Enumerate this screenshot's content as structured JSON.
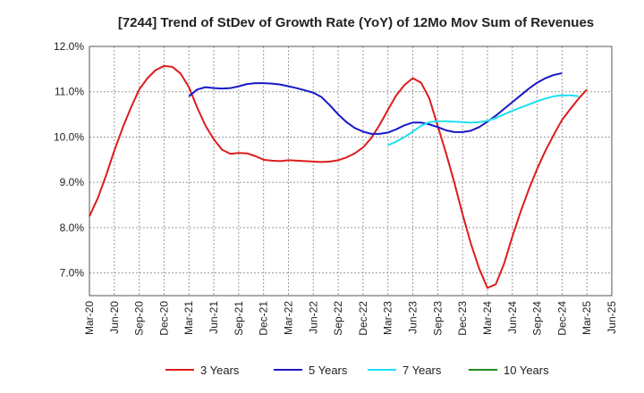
{
  "chart_data": {
    "type": "line",
    "title": "[7244]  Trend of StDev of Growth Rate (YoY) of 12Mo Mov Sum of Revenues",
    "xlabel": "",
    "ylabel": "",
    "ylim": [
      6.5,
      12.0
    ],
    "y_ticks": [
      7.0,
      8.0,
      9.0,
      10.0,
      11.0,
      12.0
    ],
    "y_tick_labels": [
      "7.0%",
      "8.0%",
      "9.0%",
      "10.0%",
      "11.0%",
      "12.0%"
    ],
    "x_labels": [
      "Mar-20",
      "Jun-20",
      "Sep-20",
      "Dec-20",
      "Mar-21",
      "Jun-21",
      "Sep-21",
      "Dec-21",
      "Mar-22",
      "Jun-22",
      "Sep-22",
      "Dec-22",
      "Mar-23",
      "Jun-23",
      "Sep-23",
      "Dec-23",
      "Mar-24",
      "Jun-24",
      "Sep-24",
      "Dec-24",
      "Mar-25",
      "Jun-25"
    ],
    "grid": true,
    "legend_position": "bottom",
    "series": [
      {
        "name": "3 Years",
        "color": "#dd1c1c",
        "start_index": 0,
        "values": [
          8.25,
          8.65,
          9.15,
          9.7,
          10.2,
          10.65,
          11.05,
          11.3,
          11.48,
          11.57,
          11.55,
          11.4,
          11.1,
          10.65,
          10.25,
          9.95,
          9.72,
          9.63,
          9.65,
          9.64,
          9.58,
          9.5,
          9.48,
          9.47,
          9.49,
          9.48,
          9.47,
          9.46,
          9.45,
          9.46,
          9.49,
          9.55,
          9.64,
          9.77,
          9.98,
          10.27,
          10.6,
          10.92,
          11.15,
          11.3,
          11.2,
          10.85,
          10.25,
          9.65,
          9.0,
          8.3,
          7.65,
          7.1,
          6.67,
          6.75,
          7.2,
          7.8,
          8.35,
          8.85,
          9.3,
          9.7,
          10.05,
          10.38,
          10.62,
          10.85,
          11.05
        ]
      },
      {
        "name": "5 Years",
        "color": "#1818c8",
        "start_index": 12,
        "values": [
          10.9,
          11.05,
          11.1,
          11.08,
          11.07,
          11.08,
          11.12,
          11.17,
          11.19,
          11.19,
          11.18,
          11.16,
          11.12,
          11.08,
          11.03,
          10.98,
          10.88,
          10.7,
          10.5,
          10.33,
          10.2,
          10.12,
          10.07,
          10.07,
          10.1,
          10.17,
          10.26,
          10.32,
          10.32,
          10.28,
          10.22,
          10.15,
          10.11,
          10.11,
          10.14,
          10.22,
          10.34,
          10.47,
          10.62,
          10.77,
          10.92,
          11.07,
          11.2,
          11.3,
          11.37,
          11.41
        ]
      },
      {
        "name": "7 Years",
        "color": "#1de0f0",
        "start_index": 36,
        "values": [
          9.82,
          9.9,
          10.0,
          10.12,
          10.25,
          10.33,
          10.35,
          10.35,
          10.34,
          10.33,
          10.32,
          10.33,
          10.36,
          10.42,
          10.5,
          10.58,
          10.65,
          10.72,
          10.79,
          10.85,
          10.9,
          10.92,
          10.92,
          10.9
        ]
      },
      {
        "name": "10 Years",
        "color": "#1f8a1f",
        "start_index": 0,
        "values": []
      }
    ]
  }
}
